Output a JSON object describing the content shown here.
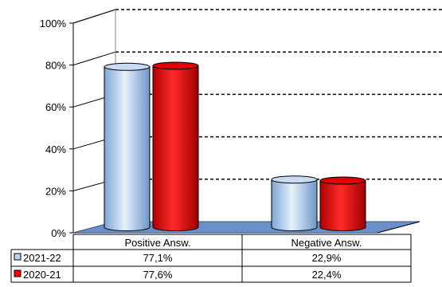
{
  "chart_data": {
    "type": "bar",
    "categories": [
      "Positive Answ.",
      "Negative Answ."
    ],
    "series": [
      {
        "name": "2021-22",
        "values": [
          77.1,
          22.9
        ],
        "labels": [
          "77,1%",
          "22,9%"
        ],
        "color": "#b8d4f0"
      },
      {
        "name": "2020-21",
        "values": [
          77.6,
          22.4
        ],
        "labels": [
          "77,6%",
          "22,4%"
        ],
        "color": "#ff0000"
      }
    ],
    "ylim": [
      0,
      100
    ],
    "yticks": [
      "0%",
      "20%",
      "40%",
      "60%",
      "80%",
      "100%"
    ],
    "floor_color": "#6b8fc7",
    "grid": "dashed",
    "legend": "data-table-below"
  }
}
